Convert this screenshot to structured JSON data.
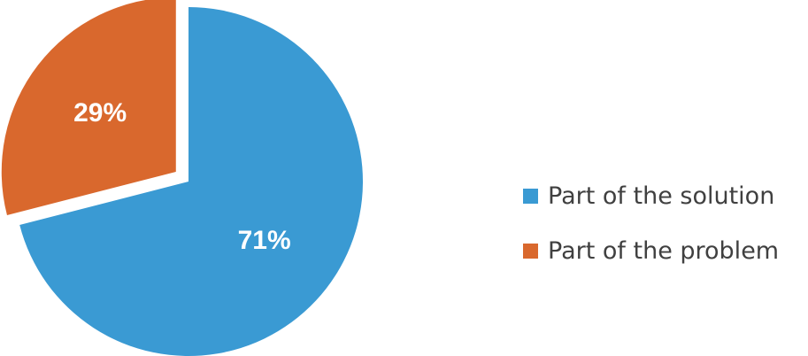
{
  "chart_data": {
    "type": "pie",
    "categories": [
      "Part of the solution",
      "Part of the problem"
    ],
    "values": [
      71,
      29
    ],
    "data_labels": [
      "71%",
      "29%"
    ],
    "colors": [
      "#3a9ad3",
      "#d9682d"
    ],
    "exploded": [
      false,
      true
    ],
    "legend_placement": "right"
  },
  "legend": {
    "items": [
      {
        "label": "Part of the solution",
        "color": "#3a9ad3"
      },
      {
        "label": "Part of the problem",
        "color": "#d9682d"
      }
    ]
  }
}
